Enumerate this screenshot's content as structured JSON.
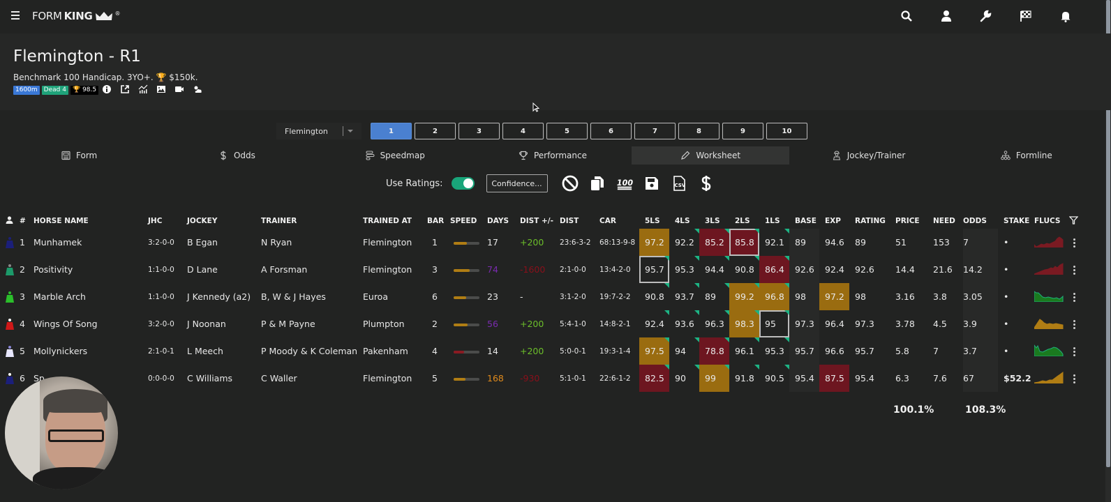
{
  "app": {
    "logo_thin": "FORM",
    "logo_bold": "KING",
    "logo_reg": "®"
  },
  "topbar": {
    "icons": [
      "search-icon",
      "user-icon",
      "wrench-icon",
      "checkered-flag-icon",
      "bell-icon"
    ]
  },
  "race": {
    "title": "Flemington - R1",
    "subtitle_pre": "Benchmark 100 Handicap. 3YO+.",
    "trophy": "🏆",
    "prize": "$150k.",
    "badges": {
      "distance": "1600m",
      "track": "Dead 4",
      "rating_icon": "🏆",
      "rating": "98.5"
    },
    "icons": [
      "info-icon",
      "external-link-icon",
      "chart-icon",
      "image-icon",
      "video-icon",
      "weather-icon"
    ]
  },
  "race_nav": {
    "venue": "Flemington",
    "races": [
      "1",
      "2",
      "3",
      "4",
      "5",
      "6",
      "7",
      "8",
      "9",
      "10"
    ],
    "active_race": "1"
  },
  "tabs": [
    {
      "label": "Form",
      "icon": "newspaper-icon"
    },
    {
      "label": "Odds",
      "icon": "dollar-icon"
    },
    {
      "label": "Speedmap",
      "icon": "speedmap-icon"
    },
    {
      "label": "Performance",
      "icon": "trophy-icon"
    },
    {
      "label": "Worksheet",
      "icon": "pencil-icon",
      "active": true
    },
    {
      "label": "Jockey/Trainer",
      "icon": "jockey-icon"
    },
    {
      "label": "Formline",
      "icon": "sitemap-icon"
    }
  ],
  "toolbar": {
    "use_ratings_label": "Use Ratings:",
    "use_ratings_on": true,
    "confidence_label": "Confidence...",
    "icons": [
      "ban-icon",
      "copy-icon",
      "hundred-icon",
      "save-icon",
      "csv-icon",
      "dollar-icon"
    ]
  },
  "table": {
    "headers": {
      "num": "#",
      "horse": "HORSE NAME",
      "jhc": "JHC",
      "jockey": "JOCKEY",
      "trainer": "TRAINER",
      "trained_at": "TRAINED AT",
      "bar": "BAR",
      "speed": "SPEED",
      "days": "DAYS",
      "dist_diff": "DIST +/-",
      "dist": "DIST",
      "car": "CAR",
      "ls5": "5LS",
      "ls4": "4LS",
      "ls3": "3LS",
      "ls2": "2LS",
      "ls1": "1LS",
      "base": "BASE",
      "exp": "EXP",
      "rating": "RATING",
      "price": "PRICE",
      "need": "NEED",
      "odds": "ODDS",
      "stake": "STAKE",
      "flucs": "FLUCS"
    },
    "rows": [
      {
        "num": "1",
        "horse": "Munhamek",
        "jhc": "3:2-0-0",
        "jockey": "B Egan",
        "trainer": "N Ryan",
        "trained_at": "Flemington",
        "bar": "1",
        "speed_pct": 50,
        "speed_color": "#b07d14",
        "days": "17",
        "days_color": "",
        "dist_diff": "+200",
        "dist_diff_color": "green",
        "dist": "23:6-3-2",
        "car": "68:13-9-8",
        "ls5": "97.2",
        "ls4": "92.2",
        "ls3": "85.2",
        "ls2": "85.8",
        "ls1": "92.1",
        "base": "89",
        "exp": "94.6",
        "rating": "89",
        "price": "51",
        "need": "153",
        "odds": "7",
        "stake": "•",
        "flucs_color": "#7a1a22"
      },
      {
        "num": "2",
        "horse": "Positivity",
        "jhc": "1:1-0-0",
        "jockey": "D Lane",
        "trainer": "A Forsman",
        "trained_at": "Flemington",
        "bar": "3",
        "speed_pct": 62,
        "speed_color": "#b07d14",
        "days": "74",
        "days_color": "purple",
        "dist_diff": "-1600",
        "dist_diff_color": "darkred",
        "dist": "2:1-0-0",
        "car": "13:4-2-0",
        "ls5": "95.7",
        "ls4": "95.3",
        "ls3": "94.4",
        "ls2": "90.8",
        "ls1": "86.4",
        "base": "92.6",
        "exp": "92.4",
        "rating": "92.6",
        "price": "14.4",
        "need": "21.6",
        "odds": "14.2",
        "stake": "•",
        "flucs_color": "#7a1a22"
      },
      {
        "num": "3",
        "horse": "Marble Arch",
        "jhc": "1:1-0-0",
        "jockey": "J Kennedy (a2)",
        "trainer": "B, W & J Hayes",
        "trained_at": "Euroa",
        "bar": "6",
        "speed_pct": 48,
        "speed_color": "#b07d14",
        "days": "23",
        "days_color": "",
        "dist_diff": "-",
        "dist_diff_color": "",
        "dist": "3:1-2-0",
        "car": "19:7-2-2",
        "ls5": "90.8",
        "ls4": "93.7",
        "ls3": "89",
        "ls2": "99.2",
        "ls1": "96.8",
        "base": "98",
        "exp": "97.2",
        "rating": "98",
        "price": "3.16",
        "need": "3.8",
        "odds": "3.05",
        "stake": "•",
        "flucs_color": "#1a7a1f"
      },
      {
        "num": "4",
        "horse": "Wings Of Song",
        "jhc": "3:2-0-0",
        "jockey": "J Noonan",
        "trainer": "P & M Payne",
        "trained_at": "Plumpton",
        "bar": "2",
        "speed_pct": 55,
        "speed_color": "#b07d14",
        "days": "56",
        "days_color": "purple",
        "dist_diff": "+200",
        "dist_diff_color": "green",
        "dist": "5:4-1-0",
        "car": "14:8-2-1",
        "ls5": "92.4",
        "ls4": "93.6",
        "ls3": "96.3",
        "ls2": "98.3",
        "ls1": "95",
        "base": "97.3",
        "exp": "96.4",
        "rating": "97.3",
        "price": "3.78",
        "need": "4.5",
        "odds": "3.9",
        "stake": "•",
        "flucs_color": "#b07d14"
      },
      {
        "num": "5",
        "horse": "Mollynickers",
        "jhc": "2:1-0-1",
        "jockey": "L Meech",
        "trainer": "P Moody & K Coleman",
        "trained_at": "Pakenham",
        "bar": "4",
        "speed_pct": 40,
        "speed_color": "#8a1a22",
        "days": "14",
        "days_color": "",
        "dist_diff": "+200",
        "dist_diff_color": "green",
        "dist": "5:0-0-1",
        "car": "19:3-1-4",
        "ls5": "97.5",
        "ls4": "94",
        "ls3": "78.8",
        "ls2": "96.1",
        "ls1": "95.3",
        "base": "95.7",
        "exp": "96.6",
        "rating": "95.7",
        "price": "5.8",
        "need": "7",
        "odds": "3.7",
        "stake": "•",
        "flucs_color": "#1a7a1f"
      },
      {
        "num": "6",
        "horse": "Sp",
        "jhc": "0:0-0-0",
        "jockey": "C Williams",
        "trainer": "C Waller",
        "trained_at": "Flemington",
        "bar": "5",
        "speed_pct": 45,
        "speed_color": "#b07d14",
        "days": "168",
        "days_color": "orange",
        "dist_diff": "-930",
        "dist_diff_color": "darkred",
        "dist": "5:1-0-1",
        "car": "22:6-1-2",
        "ls5": "82.5",
        "ls4": "90",
        "ls3": "99",
        "ls2": "91.8",
        "ls1": "90.5",
        "base": "95.4",
        "exp": "87.5",
        "rating": "95.4",
        "price": "6.3",
        "need": "7.6",
        "odds": "67",
        "stake": "$52.2",
        "flucs_color": "#b07d14"
      }
    ],
    "totals": {
      "price": "100.1%",
      "odds": "108.3%"
    }
  }
}
